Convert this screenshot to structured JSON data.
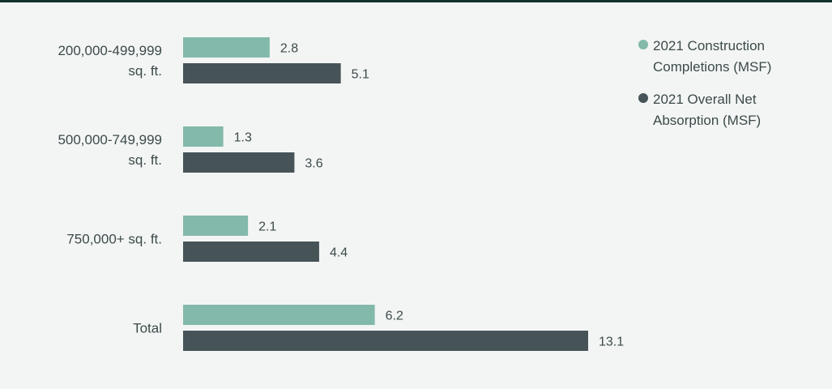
{
  "chart_data": {
    "type": "bar",
    "orientation": "horizontal",
    "categories": [
      "200,000-499,999\nsq. ft.",
      "500,000-749,999\nsq. ft.",
      "750,000+ sq. ft.",
      "Total"
    ],
    "series": [
      {
        "name": "2021 Construction\nCompletions (MSF)",
        "values": [
          2.8,
          1.3,
          2.1,
          6.2
        ],
        "color": "#83b9aa"
      },
      {
        "name": "2021 Overall Net\nAbsorption (MSF)",
        "values": [
          5.1,
          3.6,
          4.4,
          13.1
        ],
        "color": "#465458"
      }
    ],
    "xlim": [
      0,
      13.1
    ],
    "grid": false,
    "legend_position": "top-right"
  },
  "colors": {
    "background": "#f3f5f4",
    "top_rule": "#13332f"
  }
}
